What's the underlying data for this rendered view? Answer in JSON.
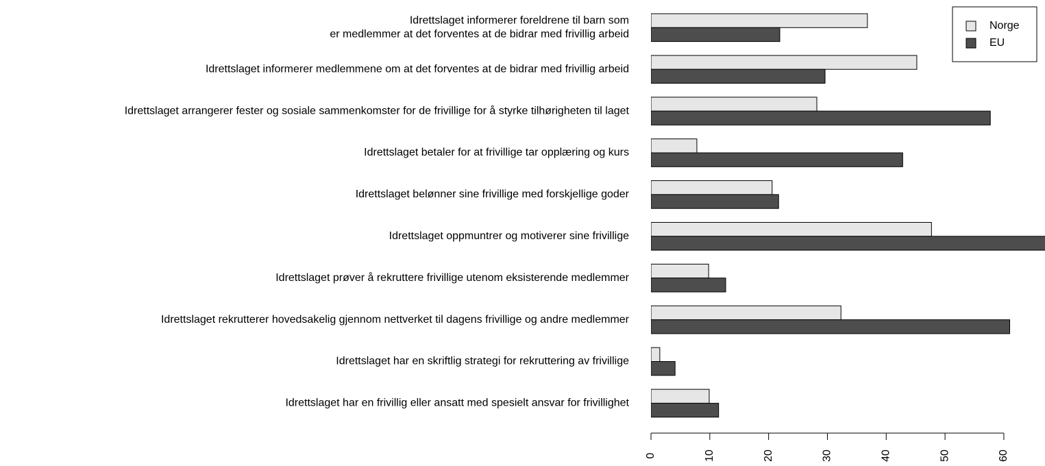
{
  "chart_data": {
    "type": "hbar",
    "categories": [
      "Idrettslaget informerer foreldrene til barn som\ner medlemmer at det forventes at de bidrar med frivillig arbeid",
      "Idrettslaget informerer medlemmene om at det forventes at de bidrar med frivillig arbeid",
      "Idrettslaget arrangerer fester og sosiale sammenkomster for de frivillige for å styrke tilhørigheten til laget",
      "Idrettslaget betaler for at frivillige tar opplæring og kurs",
      "Idrettslaget belønner sine frivillige med forskjellige goder",
      "Idrettslaget oppmuntrer og motiverer sine frivillige",
      "Idrettslaget prøver å rekruttere frivillige utenom eksisterende medlemmer",
      "Idrettslaget rekrutterer hovedsakelig gjennom nettverket til dagens frivillige og andre medlemmer",
      "Idrettslaget har en skriftlig strategi for rekruttering av frivillige",
      "Idrettslaget har en frivillig eller ansatt med spesielt ansvar for frivillighet"
    ],
    "series": [
      {
        "name": "Norge",
        "color": "#e6e6e6",
        "values": [
          36.8,
          45.2,
          28.2,
          7.8,
          20.6,
          47.7,
          9.8,
          32.3,
          1.5,
          9.9
        ]
      },
      {
        "name": "EU",
        "color": "#4d4d4d",
        "values": [
          21.9,
          29.6,
          57.7,
          42.8,
          21.7,
          70,
          12.7,
          61.0,
          4.1,
          11.5
        ]
      }
    ],
    "xlim": [
      0,
      67
    ],
    "xticks": [
      0,
      10,
      20,
      30,
      40,
      50,
      60
    ],
    "legend": "top-right"
  }
}
